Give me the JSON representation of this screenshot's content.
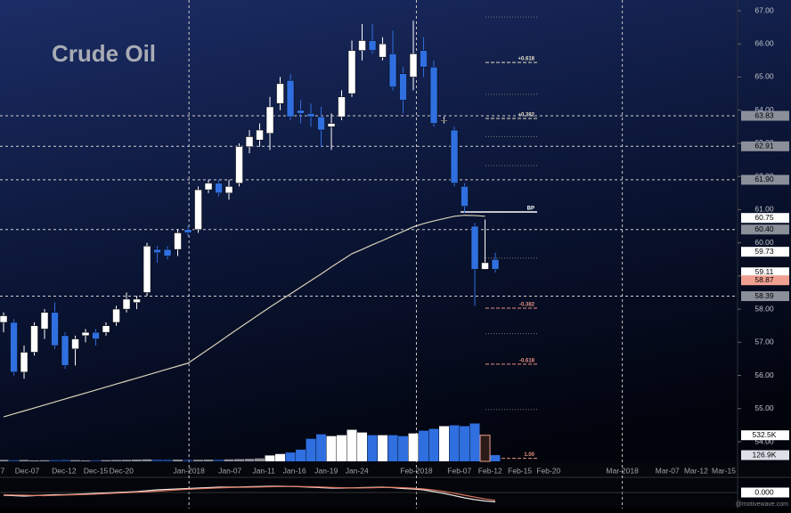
{
  "chart_data": {
    "type": "candlestick",
    "title": "Crude Oil",
    "watermark": "@motivewave.com",
    "up_color": "#ffffff",
    "down_color": "#2f6fe0",
    "xlim": [
      -0.35,
      71.65
    ],
    "ylim": [
      54,
      67
    ],
    "yticks": [
      {
        "value": 54,
        "label": "54.00"
      },
      {
        "value": 55,
        "label": "55.00"
      },
      {
        "value": 56,
        "label": "56.00"
      },
      {
        "value": 57,
        "label": "57.00"
      },
      {
        "value": 58,
        "label": "58.00"
      },
      {
        "value": 59,
        "label": "59.00"
      },
      {
        "value": 60,
        "label": "60.00"
      },
      {
        "value": 61,
        "label": "61.00"
      },
      {
        "value": 62,
        "label": "62.00"
      },
      {
        "value": 63,
        "label": "63.00"
      },
      {
        "value": 64,
        "label": "64.00"
      },
      {
        "value": 65,
        "label": "65.00"
      },
      {
        "value": 66,
        "label": "66.00"
      },
      {
        "value": 67,
        "label": "67.00"
      }
    ],
    "xticks": [
      {
        "value": -0.1,
        "label": "7"
      },
      {
        "value": 2.3,
        "label": "Dec-07"
      },
      {
        "value": 5.9,
        "label": "Dec-12"
      },
      {
        "value": 9,
        "label": "Dec-15"
      },
      {
        "value": 11.5,
        "label": "Dec-20"
      },
      {
        "value": 18.1,
        "label": "Jan-2018",
        "major": true
      },
      {
        "value": 22.1,
        "label": "Jan-07"
      },
      {
        "value": 25.4,
        "label": "Jan-11"
      },
      {
        "value": 28.4,
        "label": "Jan-16"
      },
      {
        "value": 31.5,
        "label": "Jan-19"
      },
      {
        "value": 34.5,
        "label": "Jan-24"
      },
      {
        "value": 40.3,
        "label": "Feb-2018",
        "major": true
      },
      {
        "value": 44.5,
        "label": "Feb-07"
      },
      {
        "value": 47.5,
        "label": "Feb-12"
      },
      {
        "value": 50.4,
        "label": "Feb-15"
      },
      {
        "value": 53.2,
        "label": "Feb-20"
      },
      {
        "value": 60.4,
        "label": "Mar-2018",
        "major": true
      },
      {
        "value": 64.8,
        "label": "Mar-07"
      },
      {
        "value": 67.6,
        "label": "Mar-12"
      },
      {
        "value": 70.3,
        "label": "Mar-15"
      }
    ],
    "open": [
      57.6,
      57.6,
      56.1,
      56.7,
      57.4,
      57.9,
      57.2,
      56.8,
      57.2,
      57.3,
      57.3,
      57.6,
      58.0,
      58.2,
      58.5,
      59.8,
      59.8,
      59.8,
      60.4,
      60.4,
      61.6,
      61.8,
      61.5,
      61.8,
      62.9,
      63.1,
      63.3,
      64.2,
      64.9,
      64.0,
      63.9,
      63.8,
      63.5,
      63.8,
      64.5,
      65.8,
      66.1,
      65.6,
      65.7,
      65.1,
      65.0,
      65.8,
      65.3,
      63.7,
      63.4,
      61.7,
      60.5,
      59.2,
      59.5
    ],
    "high": [
      57.9,
      57.7,
      56.9,
      57.6,
      58.0,
      58.2,
      57.3,
      57.2,
      57.4,
      57.4,
      57.6,
      58.1,
      58.5,
      58.4,
      60.0,
      59.9,
      59.9,
      60.4,
      60.5,
      61.7,
      61.9,
      61.9,
      61.9,
      63.0,
      63.4,
      63.6,
      64.4,
      65.0,
      65.1,
      64.3,
      64.2,
      64.1,
      63.9,
      64.6,
      66.1,
      66.6,
      66.6,
      66.2,
      66.4,
      65.3,
      66.7,
      66.2,
      65.5,
      63.8,
      63.5,
      61.8,
      60.6,
      60.7,
      59.7
    ],
    "low": [
      57.3,
      56.0,
      55.9,
      56.6,
      57.1,
      56.8,
      56.2,
      56.3,
      57.0,
      56.9,
      57.2,
      57.5,
      57.9,
      58.0,
      58.4,
      59.4,
      59.5,
      59.6,
      60.2,
      60.3,
      61.5,
      61.4,
      61.3,
      61.7,
      62.7,
      62.9,
      62.8,
      64.0,
      63.7,
      63.6,
      63.5,
      62.9,
      62.8,
      63.7,
      64.4,
      65.5,
      65.7,
      65.5,
      64.6,
      63.9,
      64.6,
      65.0,
      63.5,
      63.6,
      61.7,
      60.9,
      58.1,
      59.2,
      59.1
    ],
    "close": [
      57.8,
      56.1,
      56.7,
      57.5,
      57.9,
      56.9,
      56.3,
      57.1,
      57.3,
      57.1,
      57.5,
      58.0,
      58.3,
      58.3,
      59.9,
      59.7,
      59.6,
      60.3,
      60.3,
      61.6,
      61.8,
      61.5,
      61.7,
      62.9,
      63.2,
      63.4,
      64.1,
      64.8,
      63.8,
      63.9,
      63.8,
      63.4,
      63.6,
      64.4,
      65.8,
      66.1,
      65.8,
      66.0,
      64.7,
      64.3,
      65.7,
      65.3,
      63.6,
      63.7,
      61.8,
      61.1,
      59.2,
      59.4,
      59.2
    ],
    "moving_average": {
      "color": "#d8d2b8",
      "values": [
        54.75,
        54.84,
        54.93,
        55.02,
        55.11,
        55.2,
        55.29,
        55.38,
        55.47,
        55.56,
        55.65,
        55.74,
        55.83,
        55.92,
        56.01,
        56.1,
        56.19,
        56.28,
        56.37,
        56.58,
        56.79,
        57.0,
        57.22,
        57.43,
        57.64,
        57.85,
        58.06,
        58.26,
        58.46,
        58.66,
        58.86,
        59.06,
        59.27,
        59.47,
        59.67,
        59.8,
        59.94,
        60.07,
        60.21,
        60.34,
        60.48,
        60.58,
        60.66,
        60.73,
        60.8,
        60.83,
        60.82,
        60.8,
        null
      ]
    },
    "price_labels": [
      {
        "value": 63.83,
        "label": "63.83",
        "color": "#8a8f9a",
        "line": true
      },
      {
        "value": 62.91,
        "label": "62.91",
        "color": "#8a8f9a",
        "line": true
      },
      {
        "value": 61.9,
        "label": "61.90",
        "color": "#8a8f9a",
        "line": true
      },
      {
        "value": 60.75,
        "label": "60.75",
        "color": "#ffffff"
      },
      {
        "value": 60.4,
        "label": "60.40",
        "color": "#8a8f9a",
        "line": true
      },
      {
        "value": 59.73,
        "label": "59.73",
        "color": "#ffffff"
      },
      {
        "value": 59.11,
        "label": "59.11",
        "color": "#ffffff"
      },
      {
        "value": 58.87,
        "label": "58.87",
        "color": "#f0a090"
      },
      {
        "value": 58.39,
        "label": "58.39",
        "color": "#8a8f9a",
        "line": true
      }
    ],
    "fib_levels": [
      {
        "label": "+0.618",
        "value": 65.44,
        "color": "#e8e0c8"
      },
      {
        "label": "+0.382",
        "value": 63.75,
        "color": "#e8e0c8"
      },
      {
        "label": "BP",
        "value": 60.93,
        "color": "#ffffff"
      },
      {
        "label": "-0.382",
        "value": 58.03,
        "color": "#e89080"
      },
      {
        "label": "-0.618",
        "value": 56.34,
        "color": "#e89080"
      },
      {
        "label": "1.00",
        "value": 53.5,
        "color": "#e89080"
      }
    ],
    "fib_minor": [
      66.81,
      64.48,
      63.2,
      62.33,
      59.54,
      57.26,
      54.97
    ],
    "volume": {
      "lim": [
        0,
        800000
      ],
      "values": [
        30000,
        25000,
        28000,
        20000,
        22000,
        26000,
        30000,
        24000,
        20000,
        22000,
        25000,
        28000,
        30000,
        35000,
        40000,
        38000,
        36000,
        35000,
        30000,
        32000,
        35000,
        38000,
        40000,
        45000,
        50000,
        60000,
        120000,
        150000,
        180000,
        239000,
        460000,
        552000,
        515000,
        534000,
        644000,
        589000,
        534000,
        534000,
        534000,
        515000,
        570000,
        626000,
        662000,
        718000,
        736000,
        718000,
        773000,
        532500,
        126900
      ],
      "labels": [
        {
          "value": 532500,
          "label": "532.5K"
        },
        {
          "value": 126900,
          "label": "126.9K"
        }
      ]
    },
    "oscillator": {
      "ylim": [
        -1.5,
        1.5
      ],
      "ticks": [
        {
          "value": 0,
          "label": "0.000"
        }
      ],
      "series": [
        {
          "color": "#f0e6e6",
          "values": [
            -0.3,
            -0.35,
            -0.4,
            -0.35,
            -0.3,
            -0.25,
            -0.25,
            -0.2,
            -0.15,
            -0.1,
            -0.05,
            0,
            0.05,
            0.1,
            0.2,
            0.3,
            0.35,
            0.4,
            0.45,
            0.5,
            0.55,
            0.6,
            0.6,
            0.62,
            0.65,
            0.68,
            0.7,
            0.7,
            0.68,
            0.65,
            0.6,
            0.55,
            0.5,
            0.5,
            0.52,
            0.55,
            0.58,
            0.6,
            0.55,
            0.45,
            0.4,
            0.3,
            0.1,
            -0.1,
            -0.35,
            -0.6,
            -0.8,
            -0.95,
            -1.05
          ]
        },
        {
          "color": "#e07a60",
          "values": [
            -0.25,
            -0.28,
            -0.3,
            -0.33,
            -0.35,
            -0.32,
            -0.28,
            -0.25,
            -0.22,
            -0.18,
            -0.12,
            -0.07,
            -0.02,
            0.03,
            0.08,
            0.15,
            0.22,
            0.3,
            0.36,
            0.42,
            0.47,
            0.52,
            0.56,
            0.58,
            0.6,
            0.62,
            0.65,
            0.67,
            0.68,
            0.67,
            0.65,
            0.61,
            0.57,
            0.53,
            0.51,
            0.52,
            0.54,
            0.57,
            0.58,
            0.54,
            0.48,
            0.4,
            0.28,
            0.12,
            -0.08,
            -0.3,
            -0.52,
            -0.72,
            -0.88
          ]
        }
      ]
    }
  }
}
